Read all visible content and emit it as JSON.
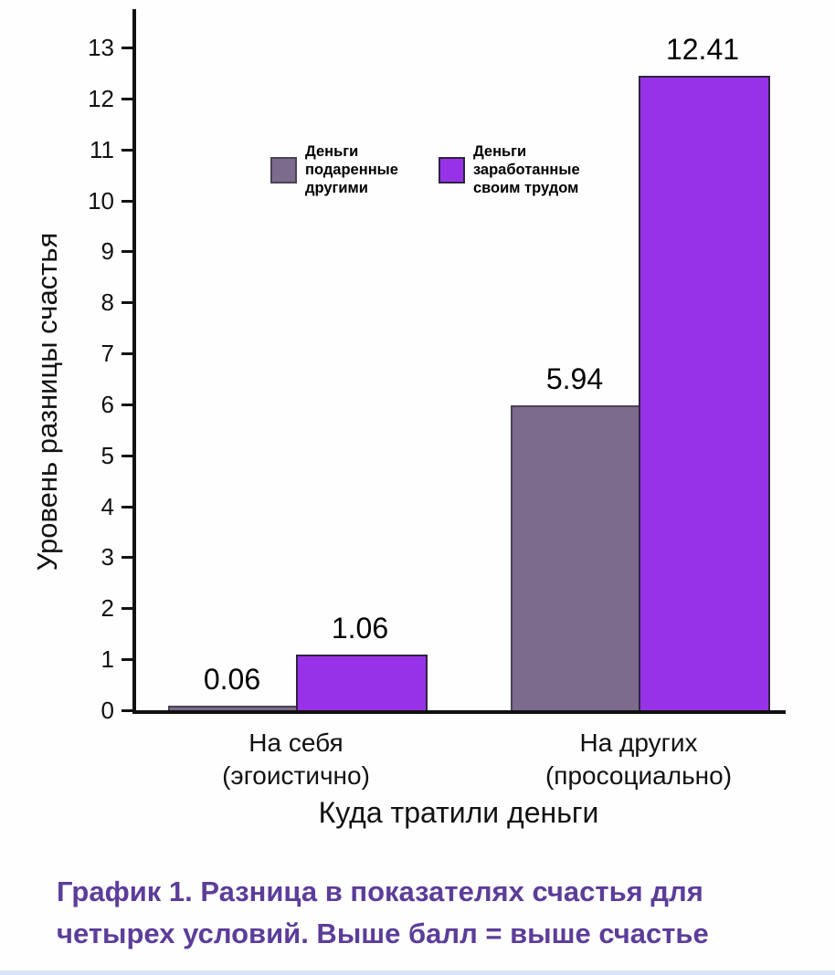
{
  "chart_data": {
    "type": "bar",
    "title": "",
    "categories": [
      "На себя\n(эгоистично)",
      "На других\n(просоциально)"
    ],
    "series": [
      {
        "name": "Деньги подаренные другими",
        "legend_label": "Деньги\nподаренные\nдругими",
        "color": "#7c6b8d",
        "border": "#4a4254",
        "values": [
          0.06,
          5.94
        ]
      },
      {
        "name": "Деньги заработанные своим трудом",
        "legend_label": "Деньги\nзаработанные\nсвоим трудом",
        "color": "#9832e8",
        "border": "#2e2340",
        "values": [
          1.06,
          12.41
        ]
      }
    ],
    "xlabel": "Куда тратили деньги",
    "ylabel": "Уровень разницы счастья",
    "ylim": [
      0,
      13
    ],
    "yticks": [
      0,
      1,
      2,
      3,
      4,
      5,
      6,
      7,
      8,
      9,
      10,
      11,
      12,
      13
    ],
    "value_labels_shown": true,
    "grid": false,
    "legend_position": "upper-left-inside"
  },
  "caption": {
    "text": "График 1. Разница в показателях счастья для четырех условий. Выше балл = выше счастье",
    "color": "#5c3d99"
  }
}
